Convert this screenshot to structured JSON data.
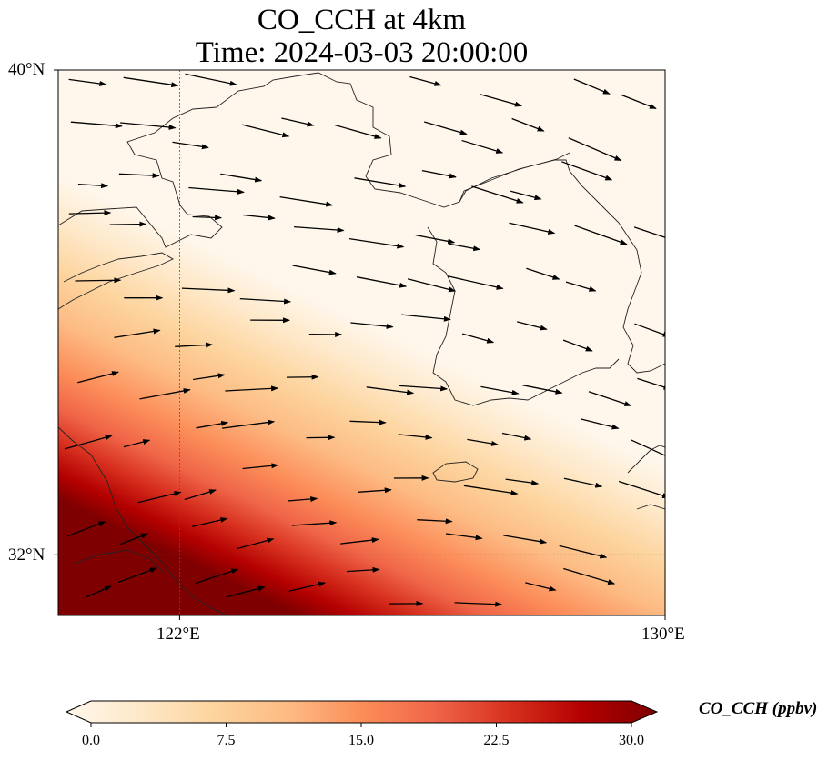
{
  "title": {
    "line1": "CO_CCH at 4km",
    "line2": "Time: 2024-03-03 20:00:00"
  },
  "axes": {
    "lat_labels": [
      "40°N",
      "32°N"
    ],
    "lon_labels": [
      "122°E",
      "130°E"
    ]
  },
  "colorbar": {
    "label": "CO_CCH (ppbv)",
    "ticks": [
      "0.0",
      "7.5",
      "15.0",
      "22.5",
      "30.0"
    ],
    "colors": [
      "#fff7ec",
      "#fee8c8",
      "#fdd49e",
      "#fdbb84",
      "#fc8d59",
      "#ef6548",
      "#d7301f",
      "#b30000",
      "#7f0000"
    ]
  },
  "map": {
    "extent": {
      "lon_min": 120,
      "lon_max": 130,
      "lat_min": 31,
      "lat_max": 40
    },
    "gridline_lons": [
      122
    ],
    "gridline_lats": [
      32
    ],
    "colormap": "OrRd",
    "wind_vectors": "shown"
  }
}
